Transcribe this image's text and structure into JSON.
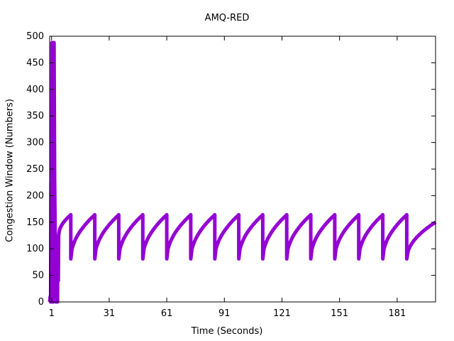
{
  "chart_data": {
    "type": "line",
    "title": "AMQ-RED",
    "xlabel": "Time (Seconds)",
    "ylabel": "Congestion Window (Numbers)",
    "xlim": [
      0,
      201
    ],
    "ylim": [
      0,
      500
    ],
    "xticks": [
      1,
      31,
      61,
      91,
      121,
      151,
      181
    ],
    "yticks": [
      0,
      50,
      100,
      150,
      200,
      250,
      300,
      350,
      400,
      450,
      500
    ],
    "grid": false,
    "series": [
      {
        "color": "#9400d3",
        "startup": [
          [
            0,
            0
          ],
          [
            0.3,
            10
          ],
          [
            0.5,
            0
          ],
          [
            0.7,
            225
          ],
          [
            1.0,
            225
          ],
          [
            1.0,
            0
          ],
          [
            1.2,
            488
          ],
          [
            1.5,
            0
          ],
          [
            1.8,
            488
          ],
          [
            2.0,
            0
          ],
          [
            2.3,
            488
          ],
          [
            2.6,
            230
          ],
          [
            2.9,
            120
          ],
          [
            3.1,
            0
          ],
          [
            3.3,
            120
          ],
          [
            3.5,
            0
          ],
          [
            3.8,
            110
          ],
          [
            4.1,
            0
          ],
          [
            4.3,
            120
          ],
          [
            4.5,
            40
          ],
          [
            4.7,
            125
          ]
        ],
        "sawtooth": {
          "first_rise": [
            4.7,
            125,
            11.0,
            164
          ],
          "low": 81,
          "high": 164,
          "drops_at": [
            11.0,
            23.5,
            36.0,
            48.5,
            61.0,
            73.5,
            86.0,
            98.5,
            111.0,
            123.5,
            136.0,
            148.5,
            161.0,
            173.5,
            186.0
          ],
          "end": [
            201,
            150
          ]
        }
      }
    ]
  }
}
